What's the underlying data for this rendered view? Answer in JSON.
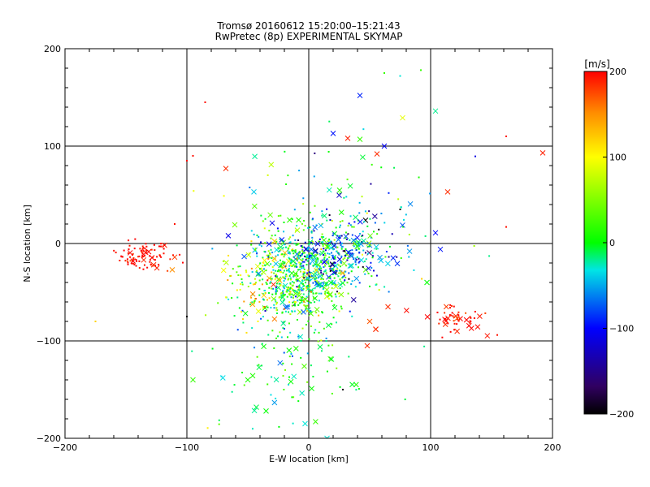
{
  "chart_data": {
    "type": "scatter",
    "title": "Tromsø 20160612 15:20:00–15:21:43",
    "subtitle": "RwPretec (8p) EXPERIMENTAL SKYMAP",
    "xlabel": "E-W location [km]",
    "ylabel": "N-S location [km]",
    "xlim": [
      -200,
      200
    ],
    "ylim": [
      -200,
      200
    ],
    "xticks": [
      "−200",
      "−100",
      "0",
      "100",
      "200"
    ],
    "yticks": [
      "−200",
      "−100",
      "0",
      "100",
      "200"
    ],
    "grid": true,
    "colorbar": {
      "label": "[m/s]",
      "range": [
        -200,
        200
      ],
      "ticks": [
        "200",
        "100",
        "0",
        "−100",
        "−200"
      ],
      "colors": [
        "#ff0000",
        "#ff8c00",
        "#ffff00",
        "#00ff00",
        "#00e5e5",
        "#0000ff",
        "#000000"
      ]
    },
    "markers": [
      "cross",
      "dot"
    ],
    "clusters": [
      {
        "x": -135,
        "y": -12,
        "sx": 11,
        "sy": 7,
        "n": 95,
        "v": 195,
        "dv": 10,
        "xfrac": 0.12
      },
      {
        "x": 122,
        "y": -78,
        "sx": 12,
        "sy": 8,
        "n": 55,
        "v": 195,
        "dv": 10,
        "xfrac": 0.3
      },
      {
        "x": -10,
        "y": -35,
        "sx": 22,
        "sy": 25,
        "n": 650,
        "v": 0,
        "dv": 45,
        "xfrac": 0.12
      },
      {
        "x": 25,
        "y": -10,
        "sx": 22,
        "sy": 18,
        "n": 260,
        "v": -60,
        "dv": 70,
        "xfrac": 0.2
      },
      {
        "x": 25,
        "y": 20,
        "sx": 45,
        "sy": 40,
        "n": 120,
        "v": -10,
        "dv": 60,
        "xfrac": 0.2
      },
      {
        "x": -20,
        "y": -130,
        "sx": 30,
        "sy": 30,
        "n": 90,
        "v": 0,
        "dv": 30,
        "xfrac": 0.2
      },
      {
        "x": -35,
        "y": -40,
        "sx": 18,
        "sy": 20,
        "n": 90,
        "v": 110,
        "dv": 40,
        "xfrac": 0.25
      }
    ],
    "points": [
      {
        "x": 42,
        "y": 152,
        "v": -90,
        "m": "cross"
      },
      {
        "x": 20,
        "y": 113,
        "v": -95,
        "m": "cross"
      },
      {
        "x": 32,
        "y": 108,
        "v": 190,
        "m": "cross"
      },
      {
        "x": 42,
        "y": 107,
        "v": 20,
        "m": "cross"
      },
      {
        "x": 62,
        "y": 100,
        "v": -100,
        "m": "cross"
      },
      {
        "x": 56,
        "y": 92,
        "v": 185,
        "m": "cross"
      },
      {
        "x": 77,
        "y": 129,
        "v": 90,
        "m": "cross"
      },
      {
        "x": 104,
        "y": 136,
        "v": -20,
        "m": "cross"
      },
      {
        "x": 192,
        "y": 93,
        "v": 190,
        "m": "cross"
      },
      {
        "x": 114,
        "y": 53,
        "v": 185,
        "m": "cross"
      },
      {
        "x": 104,
        "y": 11,
        "v": -100,
        "m": "cross"
      },
      {
        "x": 108,
        "y": -6,
        "v": -95,
        "m": "cross"
      },
      {
        "x": -68,
        "y": 77,
        "v": 185,
        "m": "cross"
      },
      {
        "x": -45,
        "y": 53,
        "v": -40,
        "m": "cross"
      },
      {
        "x": -30,
        "y": 21,
        "v": -110,
        "m": "cross"
      },
      {
        "x": -66,
        "y": 8,
        "v": -110,
        "m": "cross"
      },
      {
        "x": -110,
        "y": -14,
        "v": 180,
        "m": "cross"
      },
      {
        "x": -112,
        "y": -27,
        "v": 150,
        "m": "cross"
      },
      {
        "x": -50,
        "y": -140,
        "v": 10,
        "m": "cross"
      },
      {
        "x": -95,
        "y": -140,
        "v": 20,
        "m": "cross"
      },
      {
        "x": -43,
        "y": -168,
        "v": -10,
        "m": "cross"
      },
      {
        "x": -35,
        "y": -172,
        "v": 0,
        "m": "cross"
      },
      {
        "x": -3,
        "y": -185,
        "v": -30,
        "m": "cross"
      },
      {
        "x": 15,
        "y": -200,
        "v": -30,
        "m": "cross"
      },
      {
        "x": 55,
        "y": -88,
        "v": 185,
        "m": "cross"
      },
      {
        "x": 55,
        "y": -88,
        "v": 185,
        "m": "cross"
      },
      {
        "x": 50,
        "y": -80,
        "v": 170,
        "m": "cross"
      },
      {
        "x": 65,
        "y": -65,
        "v": 185,
        "m": "cross"
      },
      {
        "x": 48,
        "y": -105,
        "v": 185,
        "m": "cross"
      },
      {
        "x": 97,
        "y": -40,
        "v": 0,
        "m": "cross"
      },
      {
        "x": 162,
        "y": 110,
        "v": 195,
        "m": "dot"
      },
      {
        "x": 162,
        "y": 17,
        "v": 195,
        "m": "dot"
      },
      {
        "x": -85,
        "y": 145,
        "v": 195,
        "m": "dot"
      },
      {
        "x": -95,
        "y": 90,
        "v": 195,
        "m": "dot"
      },
      {
        "x": -100,
        "y": 85,
        "v": 195,
        "m": "dot"
      },
      {
        "x": 62,
        "y": 175,
        "v": 20,
        "m": "dot"
      },
      {
        "x": 92,
        "y": 178,
        "v": 20,
        "m": "dot"
      },
      {
        "x": 75,
        "y": 172,
        "v": -30,
        "m": "dot"
      },
      {
        "x": -110,
        "y": 20,
        "v": 195,
        "m": "dot"
      },
      {
        "x": -175,
        "y": -80,
        "v": 120,
        "m": "dot"
      },
      {
        "x": -100,
        "y": -75,
        "v": -200,
        "m": "dot"
      },
      {
        "x": 75,
        "y": 35,
        "v": -200,
        "m": "dot"
      },
      {
        "x": 28,
        "y": -150,
        "v": -200,
        "m": "dot"
      }
    ]
  }
}
